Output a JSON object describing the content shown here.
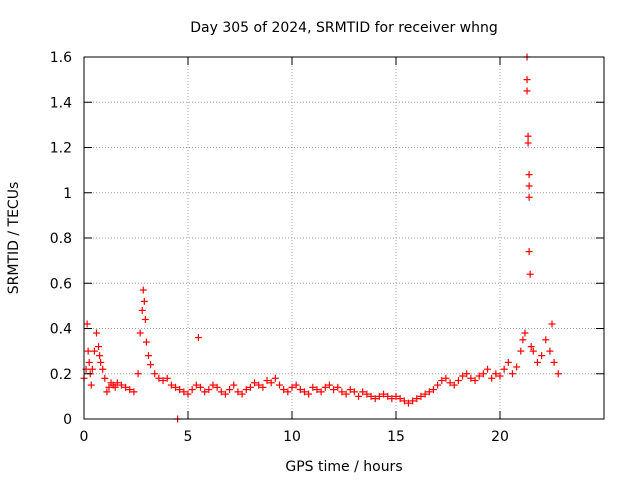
{
  "chart_data": {
    "type": "scatter",
    "title": "Day 305 of 2024, SRMTID for receiver whng",
    "xlabel": "GPS time / hours",
    "ylabel": "SRMTID / TECUs",
    "xlim": [
      0,
      25
    ],
    "ylim": [
      0,
      1.6
    ],
    "xticks": [
      0,
      5,
      10,
      15,
      20
    ],
    "yticks": [
      0,
      0.2,
      0.4,
      0.6,
      0.8,
      1,
      1.2,
      1.4,
      1.6
    ],
    "xtick_labels": [
      "0",
      "5",
      "10",
      "15",
      "20"
    ],
    "ytick_labels": [
      "0",
      "0.2",
      "0.4",
      "0.6",
      "0.8",
      "1",
      "1.2",
      "1.4",
      "1.6"
    ],
    "grid": true,
    "marker": "+",
    "color": "#ff0000",
    "series": [
      {
        "name": "SRMTID",
        "x": [
          0.0,
          0.1,
          0.15,
          0.2,
          0.25,
          0.3,
          0.35,
          0.4,
          0.5,
          0.6,
          0.7,
          0.75,
          0.8,
          0.9,
          1.0,
          1.1,
          1.2,
          1.3,
          1.4,
          1.5,
          1.6,
          1.8,
          2.0,
          2.2,
          2.4,
          2.6,
          2.7,
          2.8,
          2.85,
          2.9,
          2.95,
          3.0,
          3.1,
          3.2,
          3.4,
          3.6,
          3.8,
          4.0,
          4.2,
          4.4,
          4.5,
          4.6,
          4.8,
          5.0,
          5.2,
          5.4,
          5.5,
          5.6,
          5.8,
          6.0,
          6.2,
          6.4,
          6.6,
          6.8,
          7.0,
          7.2,
          7.4,
          7.6,
          7.8,
          8.0,
          8.2,
          8.4,
          8.6,
          8.8,
          9.0,
          9.2,
          9.4,
          9.6,
          9.8,
          10.0,
          10.2,
          10.4,
          10.6,
          10.8,
          11.0,
          11.2,
          11.4,
          11.6,
          11.8,
          12.0,
          12.2,
          12.4,
          12.6,
          12.8,
          13.0,
          13.2,
          13.4,
          13.6,
          13.8,
          14.0,
          14.2,
          14.4,
          14.6,
          14.8,
          15.0,
          15.2,
          15.4,
          15.6,
          15.8,
          16.0,
          16.2,
          16.4,
          16.6,
          16.8,
          17.0,
          17.2,
          17.4,
          17.6,
          17.8,
          18.0,
          18.2,
          18.4,
          18.6,
          18.8,
          19.0,
          19.2,
          19.4,
          19.6,
          19.8,
          20.0,
          20.2,
          20.4,
          20.6,
          20.8,
          21.0,
          21.1,
          21.2,
          21.3,
          21.3,
          21.3,
          21.35,
          21.35,
          21.4,
          21.4,
          21.4,
          21.4,
          21.45,
          21.5,
          21.6,
          21.8,
          22.0,
          22.2,
          22.4,
          22.5,
          22.6,
          22.8
        ],
        "y": [
          0.18,
          0.22,
          0.42,
          0.3,
          0.25,
          0.2,
          0.15,
          0.22,
          0.3,
          0.38,
          0.32,
          0.28,
          0.25,
          0.22,
          0.18,
          0.12,
          0.14,
          0.16,
          0.15,
          0.14,
          0.16,
          0.15,
          0.14,
          0.13,
          0.12,
          0.2,
          0.38,
          0.48,
          0.57,
          0.52,
          0.44,
          0.34,
          0.28,
          0.24,
          0.2,
          0.18,
          0.17,
          0.18,
          0.15,
          0.14,
          0.0,
          0.13,
          0.12,
          0.11,
          0.13,
          0.15,
          0.36,
          0.14,
          0.12,
          0.13,
          0.15,
          0.14,
          0.12,
          0.11,
          0.13,
          0.15,
          0.12,
          0.11,
          0.13,
          0.14,
          0.16,
          0.15,
          0.14,
          0.17,
          0.16,
          0.18,
          0.15,
          0.13,
          0.12,
          0.14,
          0.15,
          0.13,
          0.12,
          0.11,
          0.14,
          0.13,
          0.12,
          0.14,
          0.15,
          0.13,
          0.14,
          0.12,
          0.11,
          0.13,
          0.12,
          0.1,
          0.12,
          0.11,
          0.1,
          0.09,
          0.1,
          0.11,
          0.1,
          0.09,
          0.1,
          0.09,
          0.08,
          0.07,
          0.08,
          0.09,
          0.1,
          0.11,
          0.12,
          0.13,
          0.15,
          0.17,
          0.18,
          0.16,
          0.15,
          0.17,
          0.19,
          0.2,
          0.18,
          0.17,
          0.19,
          0.2,
          0.22,
          0.18,
          0.2,
          0.19,
          0.22,
          0.25,
          0.2,
          0.23,
          0.3,
          0.35,
          0.38,
          1.6,
          1.5,
          1.45,
          1.25,
          1.22,
          1.08,
          1.03,
          0.98,
          0.74,
          0.64,
          0.32,
          0.3,
          0.25,
          0.28,
          0.35,
          0.3,
          0.42,
          0.25,
          0.2
        ]
      }
    ]
  }
}
